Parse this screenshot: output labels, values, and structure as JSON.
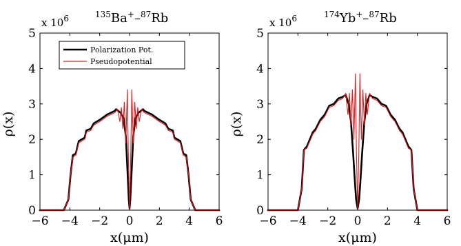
{
  "chart_data": [
    {
      "type": "line",
      "title": {
        "m1": "135",
        "e1": "Ba",
        "s1": "+",
        "d": "–",
        "m2": "87",
        "e2": "Rb"
      },
      "xlabel": "x(μm)",
      "ylabel": "ρ(x)",
      "y_multiplier": "x 10",
      "y_exponent": "6",
      "xlim": [
        -6,
        6
      ],
      "ylim": [
        0,
        5
      ],
      "xticks": [
        "−6",
        "−4",
        "−2",
        "0",
        "2",
        "4",
        "6"
      ],
      "yticks": [
        "0",
        "1",
        "2",
        "3",
        "4",
        "5"
      ],
      "grid": false,
      "legend": {
        "position": "top-right",
        "entries": [
          "Polarization Pot.",
          "Pseudopotential"
        ]
      },
      "series": [
        {
          "name": "Polarization Pot.",
          "color": "#000000",
          "x": [
            -5.0,
            -4.4,
            -4.1,
            -3.95,
            -3.8,
            -3.6,
            -3.4,
            -3.0,
            -2.9,
            -2.6,
            -2.4,
            -2.0,
            -1.5,
            -1.0,
            -0.9,
            -0.6,
            -0.4,
            -0.25,
            -0.15,
            -0.05,
            0.0,
            0.05,
            0.15,
            0.25,
            0.4,
            0.6,
            0.9,
            1.0,
            1.5,
            2.0,
            2.4,
            2.6,
            2.9,
            3.0,
            3.4,
            3.6,
            3.8,
            3.95,
            4.1,
            4.4,
            5.0
          ],
          "y": [
            0,
            0,
            0.3,
            1.0,
            1.55,
            1.6,
            1.95,
            2.05,
            2.25,
            2.3,
            2.45,
            2.55,
            2.7,
            2.8,
            2.85,
            2.75,
            2.6,
            2.1,
            1.2,
            0.3,
            0.05,
            0.3,
            1.2,
            2.1,
            2.6,
            2.75,
            2.85,
            2.8,
            2.7,
            2.55,
            2.45,
            2.3,
            2.25,
            2.05,
            1.95,
            1.6,
            1.55,
            1.0,
            0.3,
            0,
            0
          ]
        },
        {
          "name": "Pseudopotential",
          "color": "#e41a1c",
          "x": [
            -5.0,
            -4.4,
            -4.1,
            -3.95,
            -3.8,
            -3.6,
            -3.4,
            -3.0,
            -2.9,
            -2.6,
            -2.4,
            -2.0,
            -1.5,
            -1.0,
            -0.8,
            -0.65,
            -0.55,
            -0.45,
            -0.35,
            -0.25,
            -0.15,
            -0.08,
            0.0,
            0.08,
            0.15,
            0.25,
            0.35,
            0.45,
            0.55,
            0.65,
            0.8,
            1.0,
            1.5,
            2.0,
            2.4,
            2.6,
            2.9,
            3.0,
            3.4,
            3.6,
            3.8,
            3.95,
            4.1,
            4.4,
            5.0
          ],
          "y": [
            0,
            0,
            0.3,
            1.0,
            1.5,
            1.55,
            1.9,
            2.0,
            2.2,
            2.25,
            2.4,
            2.5,
            2.65,
            2.75,
            2.85,
            2.5,
            2.9,
            2.3,
            3.05,
            1.9,
            3.4,
            1.5,
            0.05,
            1.5,
            3.4,
            1.9,
            3.05,
            2.3,
            2.9,
            2.5,
            2.85,
            2.75,
            2.65,
            2.5,
            2.4,
            2.25,
            2.2,
            2.0,
            1.9,
            1.55,
            1.5,
            1.0,
            0.3,
            0,
            0
          ]
        }
      ]
    },
    {
      "type": "line",
      "title": {
        "m1": "174",
        "e1": "Yb",
        "s1": "+",
        "d": "–",
        "m2": "87",
        "e2": "Rb"
      },
      "xlabel": "x(μm)",
      "ylabel": "ρ(x)",
      "y_multiplier": "x 10",
      "y_exponent": "6",
      "xlim": [
        -6,
        6
      ],
      "ylim": [
        0,
        5
      ],
      "xticks": [
        "−6",
        "−4",
        "−2",
        "0",
        "2",
        "4",
        "6"
      ],
      "yticks": [
        "0",
        "1",
        "2",
        "3",
        "4",
        "5"
      ],
      "grid": false,
      "series": [
        {
          "name": "Polarization Pot.",
          "color": "#000000",
          "x": [
            -4.5,
            -4.0,
            -3.75,
            -3.6,
            -3.4,
            -3.0,
            -2.8,
            -2.5,
            -2.2,
            -1.9,
            -1.6,
            -1.3,
            -1.0,
            -0.8,
            -0.6,
            -0.45,
            -0.3,
            -0.2,
            -0.1,
            0.0,
            0.1,
            0.2,
            0.3,
            0.45,
            0.6,
            0.8,
            1.0,
            1.3,
            1.6,
            1.9,
            2.2,
            2.5,
            2.8,
            3.0,
            3.4,
            3.6,
            3.75,
            4.0,
            4.5
          ],
          "y": [
            0,
            0,
            0.6,
            1.7,
            1.8,
            2.2,
            2.3,
            2.55,
            2.7,
            2.95,
            3.0,
            3.15,
            3.2,
            3.25,
            3.0,
            2.5,
            1.6,
            0.9,
            0.3,
            0.05,
            0.3,
            0.9,
            1.6,
            2.5,
            3.0,
            3.25,
            3.2,
            3.15,
            3.0,
            2.95,
            2.7,
            2.55,
            2.3,
            2.2,
            1.8,
            1.7,
            0.6,
            0,
            0
          ]
        },
        {
          "name": "Pseudopotential",
          "color": "#e41a1c",
          "x": [
            -4.5,
            -4.0,
            -3.75,
            -3.6,
            -3.4,
            -3.0,
            -2.8,
            -2.5,
            -2.2,
            -1.9,
            -1.6,
            -1.3,
            -1.0,
            -0.8,
            -0.65,
            -0.55,
            -0.45,
            -0.35,
            -0.25,
            -0.15,
            -0.08,
            0.0,
            0.08,
            0.15,
            0.25,
            0.35,
            0.45,
            0.55,
            0.65,
            0.8,
            1.0,
            1.3,
            1.6,
            1.9,
            2.2,
            2.5,
            2.8,
            3.0,
            3.4,
            3.6,
            3.75,
            4.0,
            4.5
          ],
          "y": [
            0,
            0,
            0.6,
            1.7,
            1.75,
            2.15,
            2.25,
            2.5,
            2.65,
            2.9,
            2.95,
            3.1,
            3.15,
            3.3,
            2.7,
            3.3,
            2.4,
            3.4,
            2.0,
            3.85,
            1.6,
            0.05,
            1.6,
            3.85,
            2.0,
            3.4,
            2.4,
            3.3,
            2.7,
            3.3,
            3.15,
            3.1,
            2.95,
            2.9,
            2.65,
            2.5,
            2.25,
            2.15,
            1.75,
            1.7,
            0.6,
            0,
            0
          ]
        }
      ]
    }
  ]
}
